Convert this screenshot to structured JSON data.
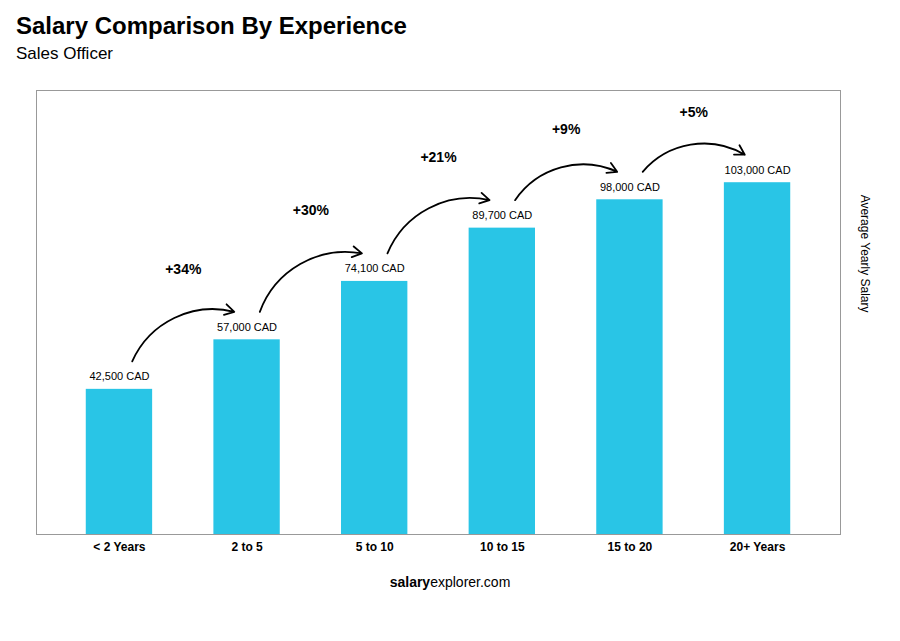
{
  "chart_data": {
    "type": "bar",
    "title": "Salary Comparison By Experience",
    "subtitle": "Sales Officer",
    "ylabel": "Average Yearly Salary",
    "categories": [
      "< 2 Years",
      "2 to 5",
      "5 to 10",
      "10 to 15",
      "15 to 20",
      "20+ Years"
    ],
    "values": [
      42500,
      57000,
      74100,
      89700,
      98000,
      103000
    ],
    "value_labels": [
      "42,500 CAD",
      "57,000 CAD",
      "74,100 CAD",
      "89,700 CAD",
      "98,000 CAD",
      "103,000 CAD"
    ],
    "data_labels": true,
    "annotations": [
      "+34%",
      "+30%",
      "+21%",
      "+9%",
      "+5%"
    ],
    "caption": [
      "salary",
      "explorer.com"
    ],
    "color": "#29c5e6",
    "ylim": [
      0,
      130000
    ],
    "grid": false,
    "tick_labels": "x"
  }
}
